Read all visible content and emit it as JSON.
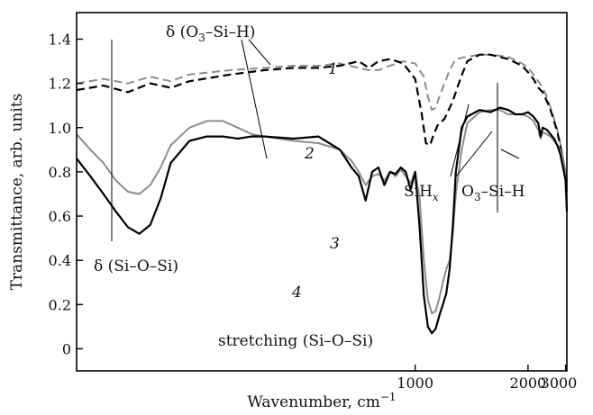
{
  "chart_data": {
    "type": "line",
    "title": "",
    "xlabel": "Wavenumber, cm",
    "xlabel_superscript": "−1",
    "ylabel": "Transmittance, arb. units",
    "xlim": [
      400,
      3050
    ],
    "ylim": [
      -0.1,
      1.52
    ],
    "x_scale": "reciprocal",
    "x_ticks": [
      1000,
      2000,
      3000
    ],
    "y_ticks": [
      0,
      0.2,
      0.4,
      0.6,
      0.8,
      1.0,
      1.2,
      1.4
    ],
    "y_tick_labels": [
      "0",
      "0.2",
      "0.4",
      "0.6",
      "0.8",
      "1.0",
      "1.2",
      "1.4"
    ],
    "x_tick_labels": [
      "1000",
      "2000",
      "3000"
    ],
    "grid": false,
    "legend": "none",
    "series": [
      {
        "label": "1",
        "color": "#8c8c8c",
        "dash": true,
        "x": [
          400,
          420,
          440,
          460,
          480,
          500,
          550,
          600,
          650,
          700,
          750,
          800,
          830,
          860,
          900,
          950,
          1000,
          1040,
          1060,
          1080,
          1100,
          1120,
          1150,
          1180,
          1220,
          1300,
          1400,
          1500,
          1700,
          1900,
          2000,
          2100,
          2200,
          2300,
          2400,
          2500,
          2600,
          2700,
          2800,
          2900,
          3000,
          3050
        ],
        "y": [
          1.2,
          1.22,
          1.2,
          1.23,
          1.21,
          1.24,
          1.26,
          1.27,
          1.28,
          1.28,
          1.29,
          1.27,
          1.26,
          1.26,
          1.28,
          1.3,
          1.29,
          1.23,
          1.14,
          1.08,
          1.09,
          1.14,
          1.2,
          1.26,
          1.31,
          1.32,
          1.33,
          1.33,
          1.32,
          1.29,
          1.27,
          1.24,
          1.21,
          1.18,
          1.14,
          1.09,
          1.04,
          0.99,
          0.93,
          0.86,
          0.77,
          0.72
        ]
      },
      {
        "label": "2",
        "color": "#000000",
        "dash": true,
        "x": [
          400,
          420,
          440,
          460,
          480,
          500,
          550,
          600,
          650,
          700,
          750,
          800,
          830,
          860,
          900,
          950,
          1000,
          1030,
          1050,
          1070,
          1090,
          1110,
          1150,
          1200,
          1250,
          1300,
          1400,
          1500,
          1700,
          1900,
          2000,
          2100,
          2200,
          2300,
          2400,
          2500,
          2600,
          2700,
          2800,
          2900,
          3000,
          3050
        ],
        "y": [
          1.17,
          1.19,
          1.16,
          1.2,
          1.18,
          1.21,
          1.24,
          1.26,
          1.27,
          1.27,
          1.28,
          1.3,
          1.27,
          1.3,
          1.31,
          1.29,
          1.22,
          1.06,
          0.93,
          0.92,
          0.97,
          1.01,
          1.04,
          1.12,
          1.22,
          1.3,
          1.33,
          1.33,
          1.31,
          1.28,
          1.25,
          1.22,
          1.18,
          1.16,
          1.12,
          1.08,
          1.03,
          0.98,
          0.92,
          0.85,
          0.76,
          0.7
        ]
      },
      {
        "label": "3",
        "color": "#8c8c8c",
        "dash": false,
        "x": [
          400,
          410,
          420,
          430,
          440,
          450,
          460,
          470,
          480,
          500,
          520,
          540,
          560,
          580,
          600,
          650,
          700,
          750,
          780,
          800,
          820,
          840,
          860,
          880,
          900,
          920,
          940,
          960,
          980,
          1000,
          1020,
          1040,
          1060,
          1080,
          1100,
          1120,
          1140,
          1160,
          1180,
          1200,
          1220,
          1260,
          1300,
          1400,
          1500,
          1600,
          1700,
          1800,
          1900,
          2000,
          2100,
          2200,
          2250,
          2300,
          2400,
          2500,
          2600,
          2700,
          2800,
          2900,
          3000,
          3050
        ],
        "y": [
          0.97,
          0.9,
          0.84,
          0.76,
          0.71,
          0.7,
          0.74,
          0.82,
          0.92,
          1.0,
          1.03,
          1.03,
          1.0,
          0.97,
          0.96,
          0.94,
          0.93,
          0.9,
          0.85,
          0.8,
          0.74,
          0.78,
          0.79,
          0.76,
          0.8,
          0.78,
          0.81,
          0.78,
          0.75,
          0.8,
          0.68,
          0.4,
          0.22,
          0.16,
          0.17,
          0.23,
          0.3,
          0.36,
          0.4,
          0.52,
          0.7,
          0.9,
          1.02,
          1.07,
          1.08,
          1.08,
          1.06,
          1.06,
          1.06,
          1.05,
          1.03,
          0.99,
          0.95,
          0.98,
          0.97,
          0.96,
          0.94,
          0.92,
          0.9,
          0.86,
          0.8,
          0.76
        ]
      },
      {
        "label": "4",
        "color": "#000000",
        "dash": false,
        "x": [
          400,
          410,
          420,
          430,
          440,
          450,
          460,
          470,
          480,
          500,
          520,
          540,
          560,
          580,
          600,
          650,
          700,
          750,
          780,
          800,
          820,
          840,
          860,
          880,
          900,
          920,
          940,
          960,
          980,
          1000,
          1020,
          1040,
          1060,
          1080,
          1100,
          1120,
          1140,
          1160,
          1180,
          1200,
          1220,
          1260,
          1300,
          1400,
          1500,
          1600,
          1700,
          1800,
          1900,
          2000,
          2100,
          2200,
          2250,
          2300,
          2400,
          2500,
          2600,
          2700,
          2800,
          2900,
          3000,
          3050
        ],
        "y": [
          0.86,
          0.78,
          0.7,
          0.62,
          0.55,
          0.52,
          0.56,
          0.68,
          0.84,
          0.94,
          0.96,
          0.96,
          0.95,
          0.96,
          0.96,
          0.95,
          0.96,
          0.9,
          0.82,
          0.78,
          0.67,
          0.8,
          0.82,
          0.74,
          0.8,
          0.79,
          0.82,
          0.8,
          0.72,
          0.8,
          0.55,
          0.24,
          0.1,
          0.07,
          0.09,
          0.15,
          0.2,
          0.25,
          0.36,
          0.55,
          0.8,
          1.0,
          1.05,
          1.08,
          1.07,
          1.09,
          1.08,
          1.06,
          1.06,
          1.07,
          1.05,
          1.02,
          0.96,
          1.0,
          0.99,
          0.97,
          0.95,
          0.92,
          0.88,
          0.82,
          0.76,
          0.62
        ]
      }
    ],
    "annotations": [
      {
        "text": "δ (Si–O–Si)"
      },
      {
        "text": "stretching (Si–O–Si)"
      },
      {
        "text_parts": [
          "δ (O",
          "3",
          "–Si–H)"
        ]
      },
      {
        "text_parts": [
          "SiH",
          "x"
        ]
      },
      {
        "text_parts": [
          "O",
          "3",
          "–Si–H"
        ]
      }
    ]
  }
}
